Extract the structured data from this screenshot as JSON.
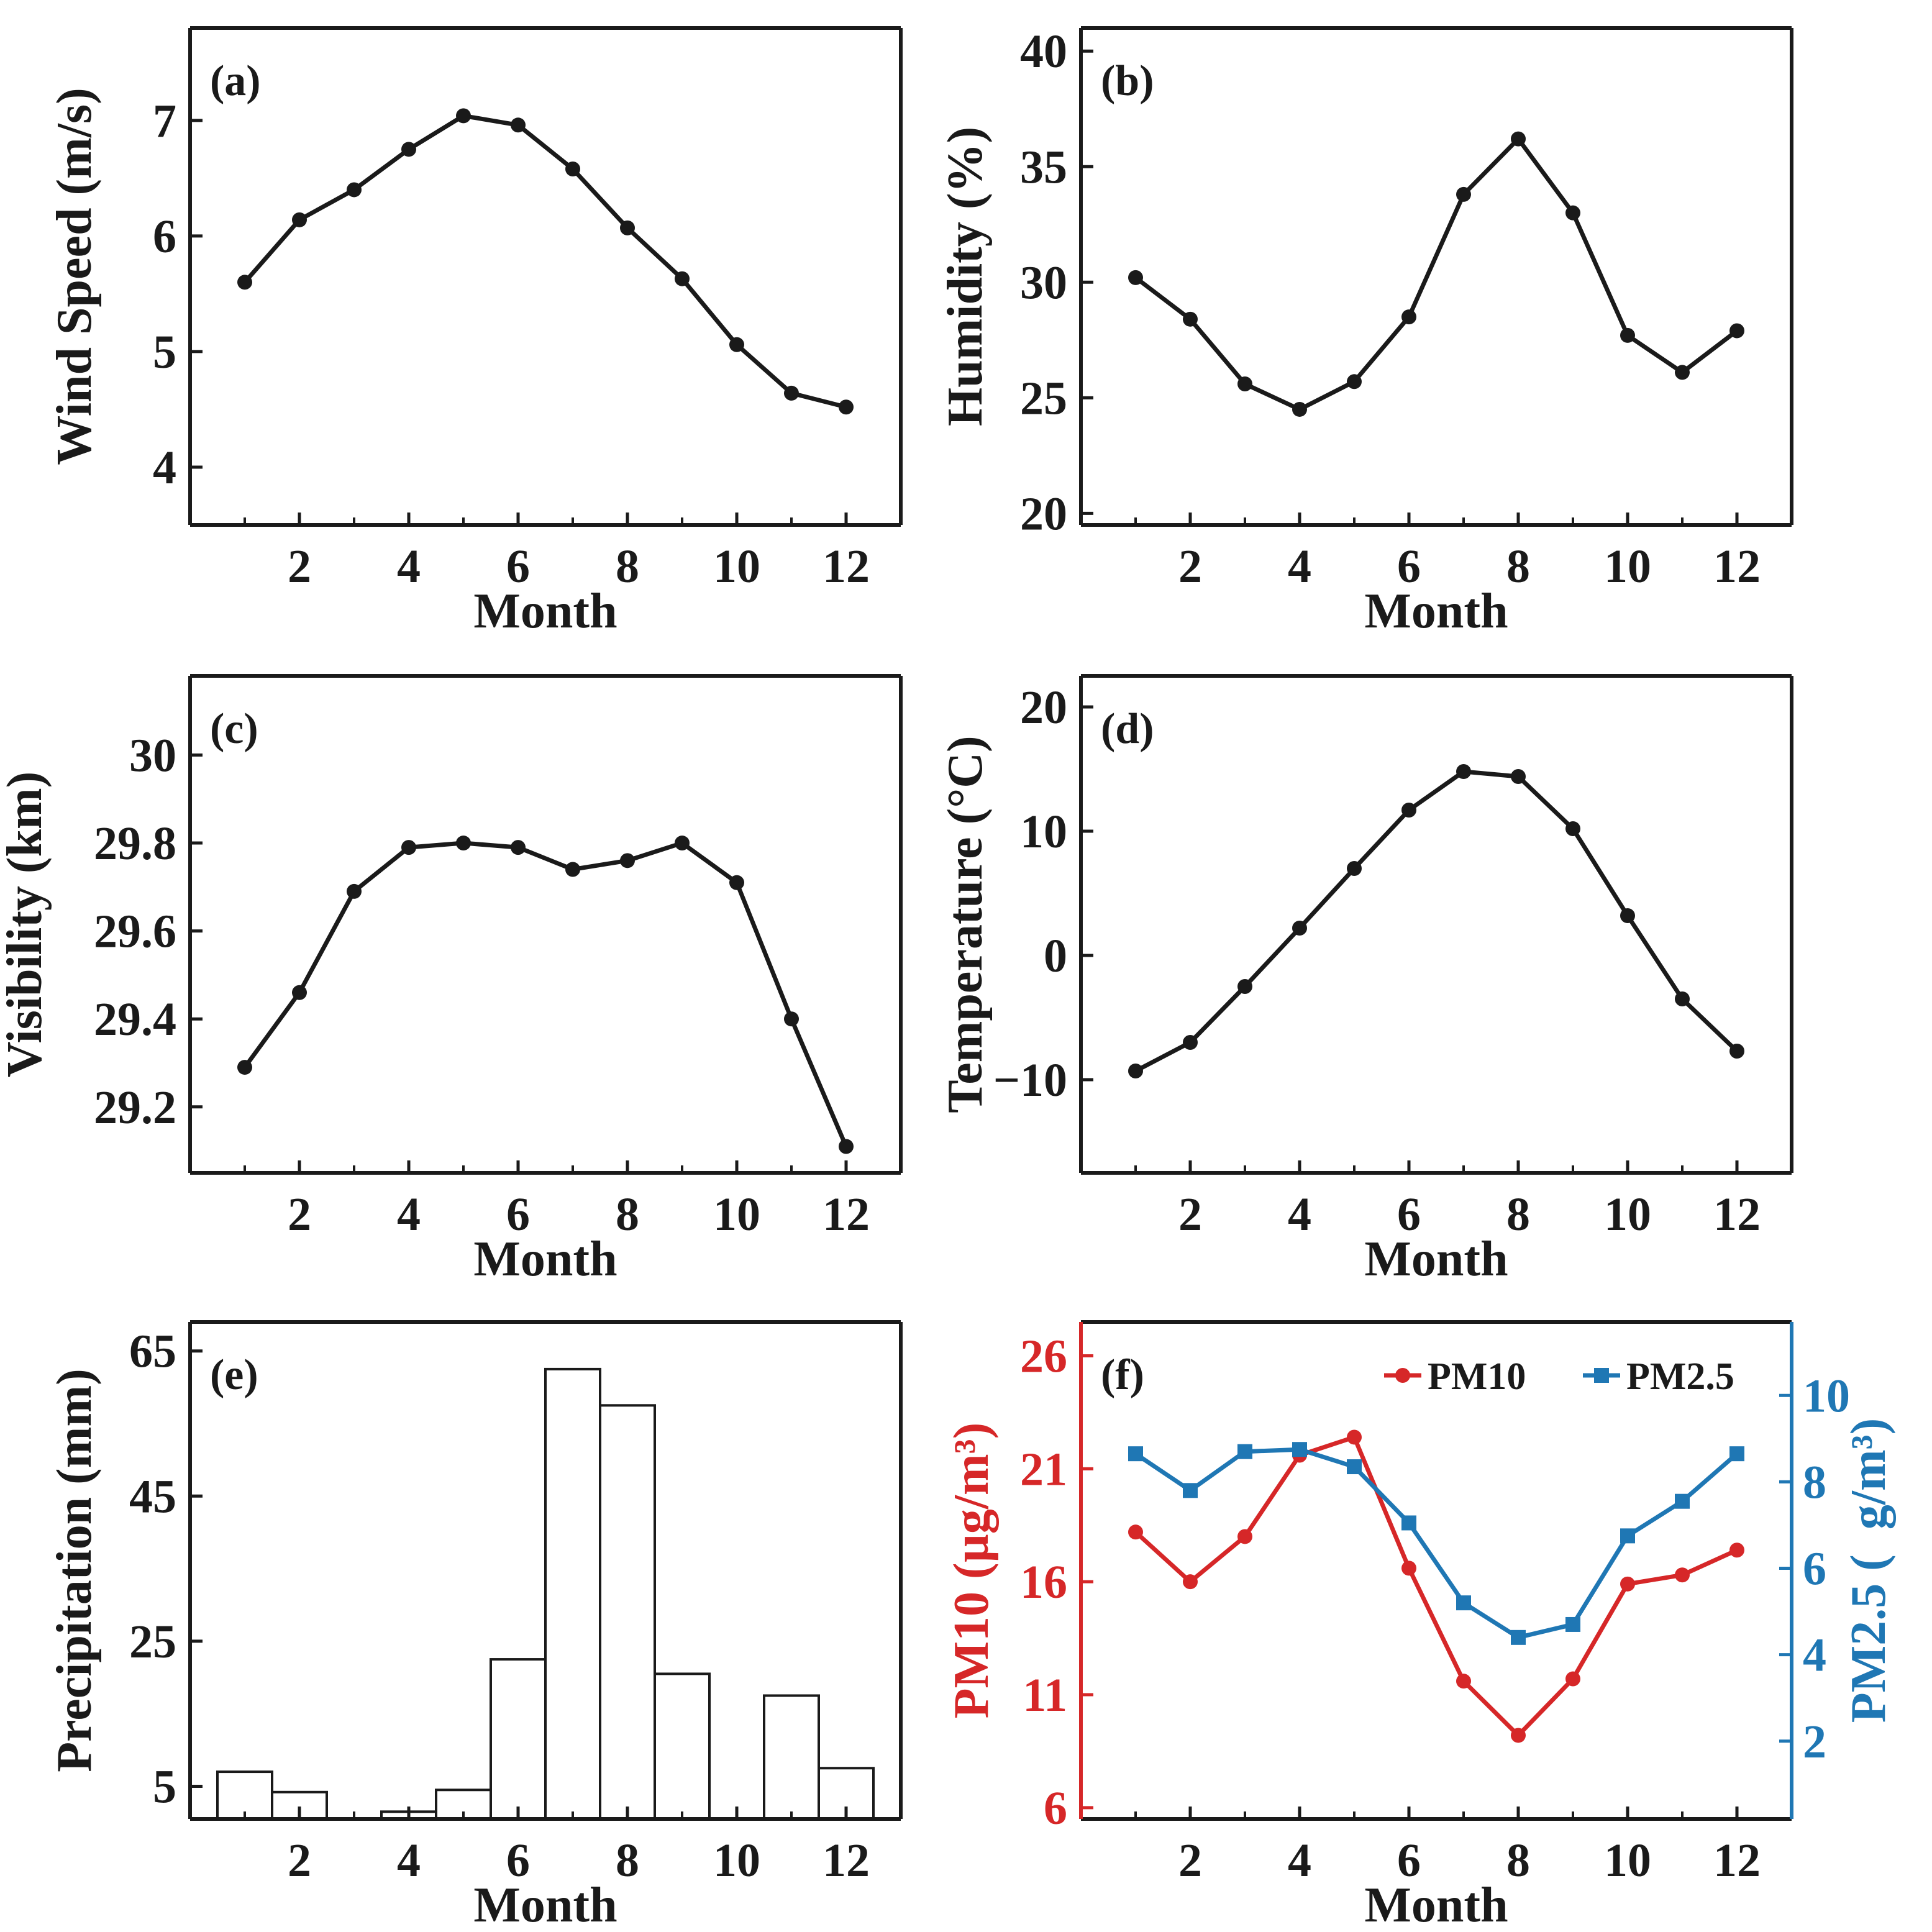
{
  "chart_data": [
    {
      "panel": "(a)",
      "type": "line",
      "xlabel": "Month",
      "ylabel": "Wind Speed (m/s)",
      "xlim": [
        0,
        13
      ],
      "ylim": [
        3.5,
        7.8
      ],
      "xticks": [
        2,
        4,
        6,
        8,
        10,
        12
      ],
      "xticks_minor": [
        1,
        3,
        5,
        7,
        9,
        11
      ],
      "yticks": [
        4,
        5,
        6,
        7
      ],
      "x": [
        1,
        2,
        3,
        4,
        5,
        6,
        7,
        8,
        9,
        10,
        11,
        12
      ],
      "series": [
        {
          "name": "Wind Speed",
          "color": "#1a1a1a",
          "marker": "circle",
          "values": [
            5.6,
            6.14,
            6.4,
            6.75,
            7.04,
            6.96,
            6.58,
            6.07,
            5.63,
            5.06,
            4.64,
            4.52
          ]
        }
      ]
    },
    {
      "panel": "(b)",
      "type": "line",
      "xlabel": "Month",
      "ylabel": "Humidity (%)",
      "xlim": [
        0,
        13
      ],
      "ylim": [
        19.5,
        41
      ],
      "xticks": [
        2,
        4,
        6,
        8,
        10,
        12
      ],
      "xticks_minor": [
        1,
        3,
        5,
        7,
        9,
        11
      ],
      "yticks": [
        20,
        25,
        30,
        35,
        40
      ],
      "x": [
        1,
        2,
        3,
        4,
        5,
        6,
        7,
        8,
        9,
        10,
        11,
        12
      ],
      "series": [
        {
          "name": "Humidity",
          "color": "#1a1a1a",
          "marker": "circle",
          "values": [
            30.2,
            28.4,
            25.6,
            24.5,
            25.7,
            28.5,
            33.8,
            36.2,
            33.0,
            27.7,
            26.1,
            27.9
          ]
        }
      ]
    },
    {
      "panel": "(c)",
      "type": "line",
      "xlabel": "Month",
      "ylabel": "Visibility (km)",
      "xlim": [
        0,
        13
      ],
      "ylim": [
        29.05,
        30.18
      ],
      "xticks": [
        2,
        4,
        6,
        8,
        10,
        12
      ],
      "xticks_minor": [
        1,
        3,
        5,
        7,
        9,
        11
      ],
      "yticks": [
        29.2,
        29.4,
        29.6,
        29.8,
        30
      ],
      "ytick_labels": [
        "29.2",
        "29.4",
        "29.6",
        "29.8",
        "30"
      ],
      "x": [
        1,
        2,
        3,
        4,
        5,
        6,
        7,
        8,
        9,
        10,
        11,
        12
      ],
      "series": [
        {
          "name": "Visibility",
          "color": "#1a1a1a",
          "marker": "circle",
          "values": [
            29.29,
            29.46,
            29.69,
            29.79,
            29.8,
            29.79,
            29.74,
            29.76,
            29.8,
            29.71,
            29.4,
            29.11
          ]
        }
      ]
    },
    {
      "panel": "(d)",
      "type": "line",
      "xlabel": "Month",
      "ylabel": "Temperature (°C)",
      "xlim": [
        0,
        13
      ],
      "ylim": [
        -17.5,
        22.5
      ],
      "xticks": [
        2,
        4,
        6,
        8,
        10,
        12
      ],
      "xticks_minor": [
        1,
        3,
        5,
        7,
        9,
        11
      ],
      "yticks": [
        -10,
        0,
        10,
        20
      ],
      "ytick_labels": [
        "−10",
        "0",
        "10",
        "20"
      ],
      "x": [
        1,
        2,
        3,
        4,
        5,
        6,
        7,
        8,
        9,
        10,
        11,
        12
      ],
      "series": [
        {
          "name": "Temperature",
          "color": "#1a1a1a",
          "marker": "circle",
          "values": [
            -9.3,
            -7.0,
            -2.5,
            2.2,
            7.0,
            11.7,
            14.8,
            14.4,
            10.2,
            3.2,
            -3.5,
            -7.7
          ]
        }
      ]
    },
    {
      "panel": "(e)",
      "type": "bar",
      "xlabel": "Month",
      "ylabel": "Precipitation (mm)",
      "xlim": [
        0,
        13
      ],
      "ylim": [
        0.5,
        69
      ],
      "xticks": [
        2,
        4,
        6,
        8,
        10,
        12
      ],
      "xticks_minor": [
        1,
        3,
        5,
        7,
        9,
        11
      ],
      "yticks": [
        5,
        25,
        45,
        65
      ],
      "categories": [
        1,
        2,
        3,
        4,
        5,
        6,
        7,
        8,
        9,
        10,
        11,
        12
      ],
      "values": [
        7.0,
        4.2,
        0,
        1.5,
        4.5,
        22.5,
        62.5,
        57.5,
        20.5,
        0,
        17.5,
        7.5
      ]
    },
    {
      "panel": "(f)",
      "type": "line",
      "xlabel": "Month",
      "ylabel": "PM10 (µg/m³)",
      "ylabel_right": "PM2.5 (  g/m³)",
      "xlim": [
        0,
        13
      ],
      "ylim": [
        5.5,
        27.5
      ],
      "ylim_right": [
        0.2,
        11.7
      ],
      "xticks": [
        2,
        4,
        6,
        8,
        10,
        12
      ],
      "xticks_minor": [
        1,
        3,
        5,
        7,
        9,
        11
      ],
      "yticks": [
        6,
        11,
        16,
        21,
        26
      ],
      "yticks_right": [
        2,
        4,
        6,
        8,
        10
      ],
      "legend_position": "top-right",
      "x": [
        1,
        2,
        3,
        4,
        5,
        6,
        7,
        8,
        9,
        10,
        11,
        12
      ],
      "series": [
        {
          "name": "PM10",
          "axis": "left",
          "color": "#d62728",
          "marker": "circle",
          "values": [
            18.2,
            16.0,
            18.0,
            21.6,
            22.4,
            16.6,
            11.6,
            9.2,
            11.7,
            15.9,
            16.3,
            17.4
          ]
        },
        {
          "name": "PM2.5",
          "axis": "right",
          "color": "#1f77b4",
          "marker": "square",
          "values": [
            8.65,
            7.8,
            8.7,
            8.75,
            8.35,
            7.05,
            5.2,
            4.4,
            4.7,
            6.75,
            7.55,
            8.65
          ]
        }
      ]
    }
  ]
}
